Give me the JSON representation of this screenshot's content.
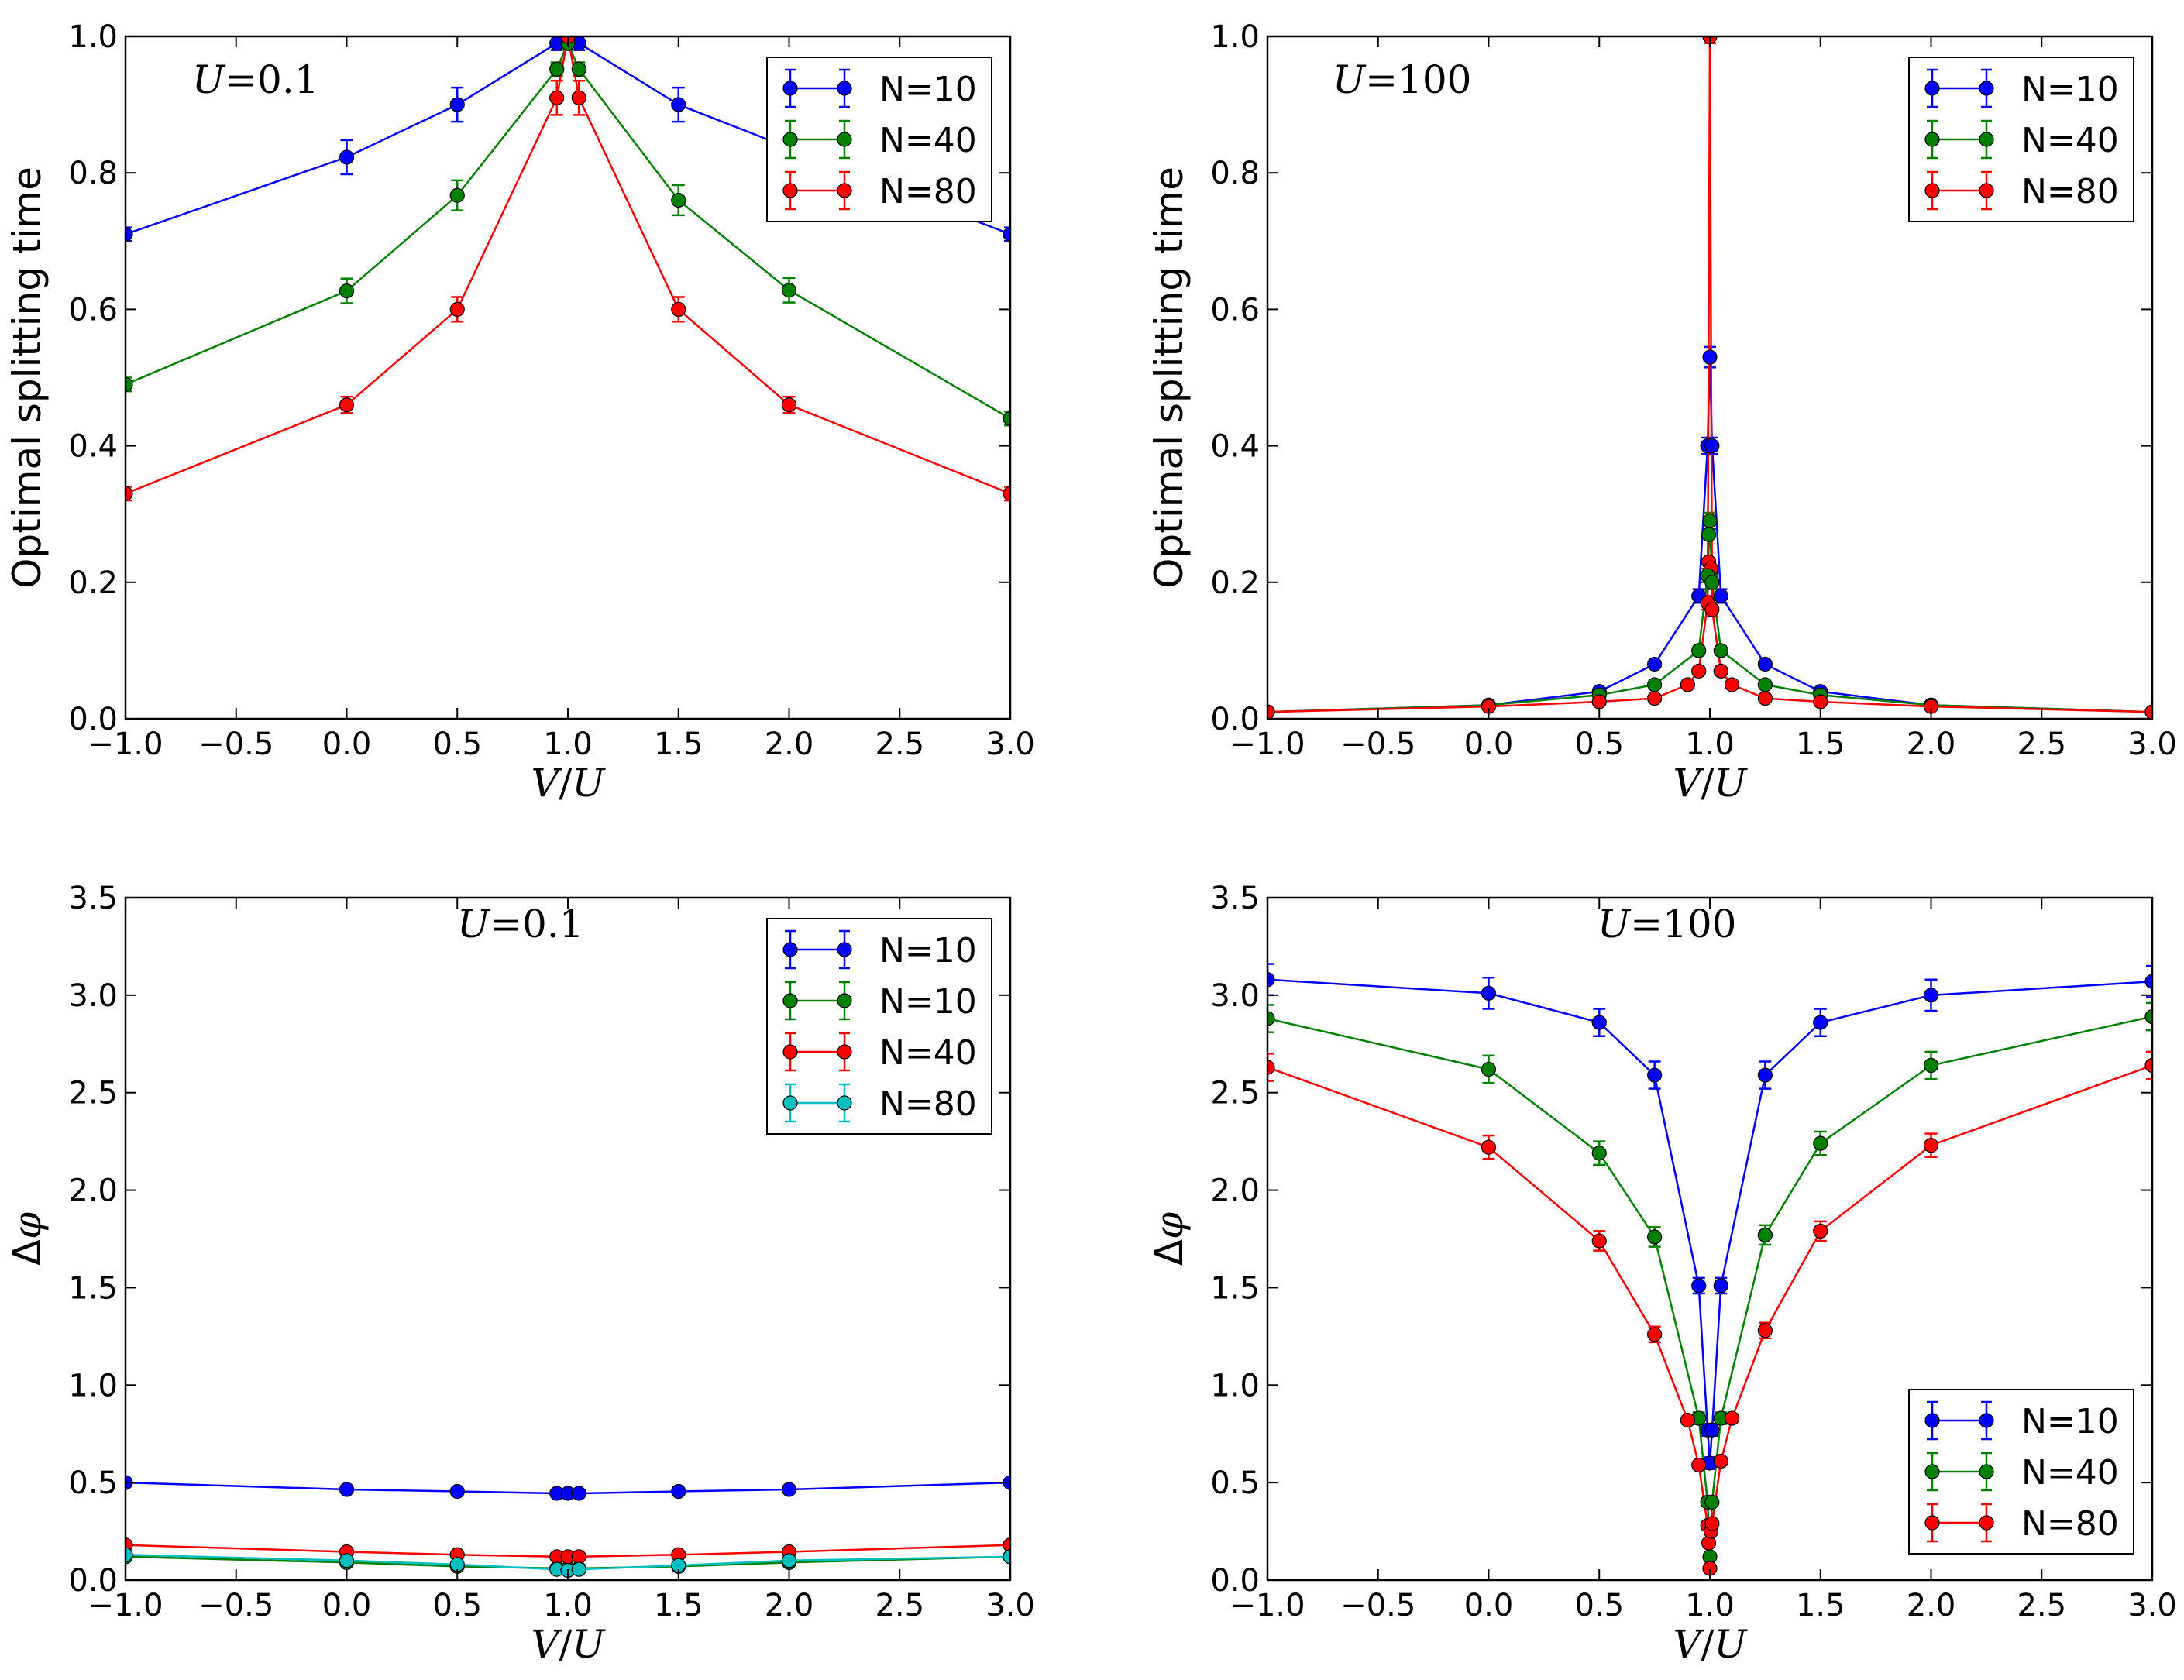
{
  "chart_data": [
    {
      "type": "line",
      "title": "",
      "xlabel": "V/U",
      "ylabel": "Optimal splitting time",
      "annotation": "U=0.1",
      "xlim": [
        -1.0,
        3.0
      ],
      "ylim": [
        0.0,
        1.0
      ],
      "xticks": [
        "−1.0",
        "−0.5",
        "0.0",
        "0.5",
        "1.0",
        "1.5",
        "2.0",
        "2.5",
        "3.0"
      ],
      "xtick_values": [
        -1.0,
        -0.5,
        0.0,
        0.5,
        1.0,
        1.5,
        2.0,
        2.5,
        3.0
      ],
      "yticks": [
        "0.0",
        "0.2",
        "0.4",
        "0.6",
        "0.8",
        "1.0"
      ],
      "ytick_values": [
        0.0,
        0.2,
        0.4,
        0.6,
        0.8,
        1.0
      ],
      "legend_position": "top-right",
      "series": [
        {
          "name": "N=10",
          "color": "#0000ff",
          "x": [
            -1.0,
            0.0,
            0.5,
            0.95,
            1.0,
            1.05,
            1.5,
            3.0
          ],
          "y": [
            0.71,
            0.823,
            0.9,
            0.99,
            1.0,
            0.99,
            0.9,
            0.71
          ],
          "err": [
            0.01,
            0.025,
            0.025,
            0.01,
            0.01,
            0.01,
            0.025,
            0.01
          ]
        },
        {
          "name": "N=40",
          "color": "#008000",
          "x": [
            -1.0,
            0.0,
            0.5,
            0.95,
            1.0,
            1.05,
            1.5,
            2.0,
            3.0
          ],
          "y": [
            0.49,
            0.627,
            0.767,
            0.952,
            0.99,
            0.952,
            0.76,
            0.628,
            0.44
          ],
          "err": [
            0.01,
            0.018,
            0.022,
            0.01,
            0.01,
            0.01,
            0.022,
            0.018,
            0.01
          ]
        },
        {
          "name": "N=80",
          "color": "#ff0000",
          "x": [
            -1.0,
            0.0,
            0.5,
            0.95,
            1.0,
            1.05,
            1.5,
            2.0,
            3.0
          ],
          "y": [
            0.33,
            0.46,
            0.6,
            0.91,
            1.0,
            0.91,
            0.6,
            0.46,
            0.33
          ],
          "err": [
            0.01,
            0.012,
            0.018,
            0.025,
            0.01,
            0.025,
            0.018,
            0.012,
            0.01
          ]
        }
      ]
    },
    {
      "type": "line",
      "title": "",
      "xlabel": "V/U",
      "ylabel": "Optimal splitting time",
      "annotation": "U=100",
      "xlim": [
        -1.0,
        3.0
      ],
      "ylim": [
        0.0,
        1.0
      ],
      "xticks": [
        "−1.0",
        "−0.5",
        "0.0",
        "0.5",
        "1.0",
        "1.5",
        "2.0",
        "2.5",
        "3.0"
      ],
      "xtick_values": [
        -1.0,
        -0.5,
        0.0,
        0.5,
        1.0,
        1.5,
        2.0,
        2.5,
        3.0
      ],
      "yticks": [
        "0.0",
        "0.2",
        "0.4",
        "0.6",
        "0.8",
        "1.0"
      ],
      "ytick_values": [
        0.0,
        0.2,
        0.4,
        0.6,
        0.8,
        1.0
      ],
      "legend_position": "top-right",
      "series": [
        {
          "name": "N=10",
          "color": "#0000ff",
          "x": [
            -1.0,
            0.0,
            0.5,
            0.75,
            0.95,
            0.99,
            1.0,
            1.01,
            1.05,
            1.25,
            1.5,
            2.0,
            3.0
          ],
          "y": [
            0.01,
            0.02,
            0.04,
            0.08,
            0.18,
            0.4,
            0.53,
            0.4,
            0.18,
            0.08,
            0.04,
            0.02,
            0.01
          ],
          "err": [
            0.003,
            0.005,
            0.005,
            0.005,
            0.01,
            0.012,
            0.015,
            0.012,
            0.01,
            0.005,
            0.005,
            0.005,
            0.003
          ]
        },
        {
          "name": "N=40",
          "color": "#008000",
          "x": [
            -1.0,
            0.0,
            0.5,
            0.75,
            0.95,
            0.99,
            1.0,
            1.01,
            1.05,
            1.25,
            1.5,
            2.0,
            3.0
          ],
          "y": [
            0.01,
            0.02,
            0.035,
            0.05,
            0.1,
            0.21,
            0.29,
            0.2,
            0.1,
            0.05,
            0.035,
            0.02,
            0.01
          ],
          "err": [
            0.003,
            0.004,
            0.004,
            0.004,
            0.006,
            0.01,
            0.012,
            0.01,
            0.006,
            0.004,
            0.004,
            0.004,
            0.003
          ]
        },
        {
          "name": "N=80",
          "color": "#ff0000",
          "x": [
            -1.0,
            0.0,
            0.5,
            0.75,
            0.9,
            0.95,
            0.99,
            1.0,
            1.01,
            1.05,
            1.1,
            1.25,
            1.5,
            2.0,
            3.0
          ],
          "y": [
            0.01,
            0.018,
            0.025,
            0.03,
            0.05,
            0.07,
            0.17,
            1.0,
            0.16,
            0.07,
            0.05,
            0.03,
            0.025,
            0.018,
            0.01
          ],
          "err": [
            0.002,
            0.003,
            0.003,
            0.003,
            0.004,
            0.005,
            0.01,
            0.01,
            0.01,
            0.005,
            0.004,
            0.003,
            0.003,
            0.003,
            0.002
          ]
        }
      ],
      "extra_points": [
        {
          "series": "N=40",
          "x": [
            0.995,
            1.005
          ],
          "y": [
            0.27,
            0.21
          ]
        },
        {
          "series": "N=80",
          "x": [
            0.995,
            1.005
          ],
          "y": [
            0.23,
            0.22
          ]
        }
      ]
    },
    {
      "type": "line",
      "title": "",
      "xlabel": "V/U",
      "ylabel": "Δφ",
      "annotation": "U=0.1",
      "xlim": [
        -1.0,
        3.0
      ],
      "ylim": [
        0.0,
        3.5
      ],
      "xticks": [
        "−1.0",
        "−0.5",
        "0.0",
        "0.5",
        "1.0",
        "1.5",
        "2.0",
        "2.5",
        "3.0"
      ],
      "xtick_values": [
        -1.0,
        -0.5,
        0.0,
        0.5,
        1.0,
        1.5,
        2.0,
        2.5,
        3.0
      ],
      "yticks": [
        "0.0",
        "0.5",
        "1.0",
        "1.5",
        "2.0",
        "2.5",
        "3.0",
        "3.5"
      ],
      "ytick_values": [
        0.0,
        0.5,
        1.0,
        1.5,
        2.0,
        2.5,
        3.0,
        3.5
      ],
      "legend_position": "top-right",
      "series": [
        {
          "name": "N=10",
          "color": "#0000ff",
          "x": [
            -1.0,
            0.0,
            0.5,
            0.95,
            1.0,
            1.05,
            1.5,
            2.0,
            3.0
          ],
          "y": [
            0.5,
            0.465,
            0.455,
            0.445,
            0.445,
            0.445,
            0.455,
            0.465,
            0.5
          ],
          "err": [
            0.005,
            0.005,
            0.005,
            0.005,
            0.005,
            0.005,
            0.005,
            0.005,
            0.005
          ]
        },
        {
          "name": "N=10",
          "color": "#008000",
          "x": [
            -1.0,
            0.0,
            0.5,
            0.95,
            1.0,
            1.05,
            1.5,
            2.0,
            3.0
          ],
          "y": [
            0.12,
            0.09,
            0.07,
            0.06,
            0.06,
            0.06,
            0.07,
            0.09,
            0.12
          ],
          "err": [
            0.004,
            0.004,
            0.004,
            0.004,
            0.004,
            0.004,
            0.004,
            0.004,
            0.004
          ]
        },
        {
          "name": "N=40",
          "color": "#ff0000",
          "x": [
            -1.0,
            0.0,
            0.5,
            0.95,
            1.0,
            1.05,
            1.5,
            2.0,
            3.0
          ],
          "y": [
            0.18,
            0.145,
            0.13,
            0.12,
            0.12,
            0.12,
            0.13,
            0.145,
            0.18
          ],
          "err": [
            0.004,
            0.004,
            0.004,
            0.004,
            0.004,
            0.004,
            0.004,
            0.004,
            0.004
          ]
        },
        {
          "name": "N=80",
          "color": "#00bfbf",
          "x": [
            -1.0,
            0.0,
            0.5,
            0.95,
            1.0,
            1.05,
            1.5,
            2.0,
            3.0
          ],
          "y": [
            0.13,
            0.1,
            0.08,
            0.055,
            0.05,
            0.055,
            0.075,
            0.1,
            0.12
          ],
          "err": [
            0.004,
            0.004,
            0.004,
            0.004,
            0.004,
            0.004,
            0.004,
            0.004,
            0.004
          ]
        }
      ]
    },
    {
      "type": "line",
      "title": "",
      "xlabel": "V/U",
      "ylabel": "Δφ",
      "annotation": "U=100",
      "xlim": [
        -1.0,
        3.0
      ],
      "ylim": [
        0.0,
        3.5
      ],
      "xticks": [
        "−1.0",
        "−0.5",
        "0.0",
        "0.5",
        "1.0",
        "1.5",
        "2.0",
        "2.5",
        "3.0"
      ],
      "xtick_values": [
        -1.0,
        -0.5,
        0.0,
        0.5,
        1.0,
        1.5,
        2.0,
        2.5,
        3.0
      ],
      "yticks": [
        "0.0",
        "0.5",
        "1.0",
        "1.5",
        "2.0",
        "2.5",
        "3.0",
        "3.5"
      ],
      "ytick_values": [
        0.0,
        0.5,
        1.0,
        1.5,
        2.0,
        2.5,
        3.0,
        3.5
      ],
      "legend_position": "bottom-right",
      "series": [
        {
          "name": "N=10",
          "color": "#0000ff",
          "x": [
            -1.0,
            0.0,
            0.5,
            0.75,
            0.95,
            0.99,
            1.0,
            1.01,
            1.05,
            1.25,
            1.5,
            2.0,
            3.0
          ],
          "y": [
            3.08,
            3.01,
            2.86,
            2.59,
            1.51,
            0.77,
            0.6,
            0.77,
            1.51,
            2.59,
            2.86,
            3.0,
            3.07
          ],
          "err": [
            0.08,
            0.08,
            0.07,
            0.07,
            0.04,
            0.03,
            0.03,
            0.03,
            0.04,
            0.07,
            0.07,
            0.08,
            0.08
          ]
        },
        {
          "name": "N=40",
          "color": "#008000",
          "x": [
            -1.0,
            0.0,
            0.5,
            0.75,
            0.95,
            0.99,
            1.0,
            1.01,
            1.05,
            1.25,
            1.5,
            2.0,
            3.0
          ],
          "y": [
            2.88,
            2.62,
            2.19,
            1.76,
            0.83,
            0.4,
            0.12,
            0.4,
            0.83,
            1.77,
            2.24,
            2.64,
            2.89
          ],
          "err": [
            0.07,
            0.07,
            0.06,
            0.05,
            0.03,
            0.02,
            0.01,
            0.02,
            0.03,
            0.05,
            0.06,
            0.07,
            0.07
          ]
        },
        {
          "name": "N=80",
          "color": "#ff0000",
          "x": [
            -1.0,
            0.0,
            0.5,
            0.75,
            0.9,
            0.95,
            0.99,
            0.995,
            1.0,
            1.005,
            1.01,
            1.05,
            1.1,
            1.25,
            1.5,
            2.0,
            3.0
          ],
          "y": [
            2.63,
            2.22,
            1.74,
            1.26,
            0.82,
            0.59,
            0.28,
            0.19,
            0.06,
            0.25,
            0.29,
            0.61,
            0.83,
            1.28,
            1.79,
            2.23,
            2.64
          ],
          "err": [
            0.07,
            0.06,
            0.05,
            0.04,
            0.02,
            0.02,
            0.01,
            0.01,
            0.01,
            0.01,
            0.01,
            0.02,
            0.02,
            0.04,
            0.05,
            0.06,
            0.07
          ]
        }
      ]
    }
  ]
}
